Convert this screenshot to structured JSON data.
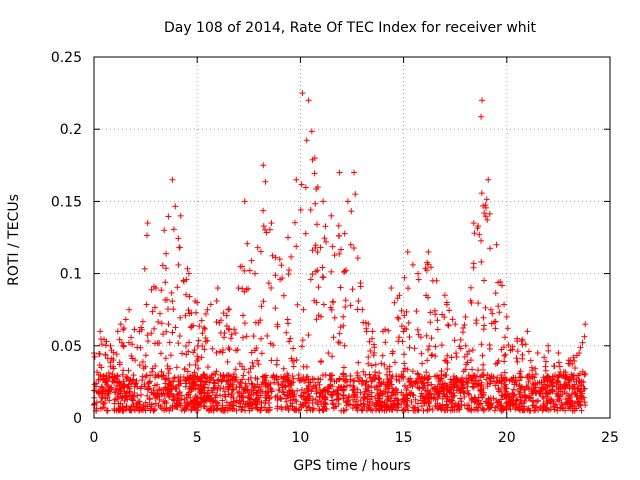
{
  "chart_data": {
    "type": "scatter",
    "title": "Day 108 of 2014, Rate Of TEC Index for receiver whit",
    "xlabel": "GPS time / hours",
    "ylabel": "ROTI / TECUs",
    "xlim": [
      0,
      25
    ],
    "ylim": [
      0,
      0.25
    ],
    "x_ticks": [
      0,
      5,
      10,
      15,
      20,
      25
    ],
    "x_tick_labels": [
      "0",
      "5",
      "10",
      "15",
      "20",
      "25"
    ],
    "y_ticks": [
      0,
      0.05,
      0.1,
      0.15,
      0.2,
      0.25
    ],
    "y_tick_labels": [
      "0",
      "0.05",
      "0.1",
      "0.15",
      "0.2",
      "0.25"
    ],
    "grid": true,
    "marker": "+",
    "color": "#ff0000",
    "series_note": "Dense cloud of ROTI samples; envelope below lists approximate local maxima (hours, TECU/min)",
    "envelope": [
      [
        0.0,
        0.045
      ],
      [
        0.3,
        0.06
      ],
      [
        0.8,
        0.05
      ],
      [
        1.3,
        0.065
      ],
      [
        1.7,
        0.075
      ],
      [
        2.2,
        0.06
      ],
      [
        2.6,
        0.135
      ],
      [
        3.0,
        0.09
      ],
      [
        3.4,
        0.13
      ],
      [
        3.8,
        0.165
      ],
      [
        4.2,
        0.14
      ],
      [
        4.6,
        0.1
      ],
      [
        5.0,
        0.08
      ],
      [
        5.5,
        0.075
      ],
      [
        6.0,
        0.09
      ],
      [
        6.5,
        0.075
      ],
      [
        7.0,
        0.09
      ],
      [
        7.3,
        0.15
      ],
      [
        7.8,
        0.1
      ],
      [
        8.2,
        0.175
      ],
      [
        8.6,
        0.135
      ],
      [
        9.0,
        0.11
      ],
      [
        9.4,
        0.125
      ],
      [
        9.8,
        0.165
      ],
      [
        10.1,
        0.225
      ],
      [
        10.4,
        0.22
      ],
      [
        10.7,
        0.18
      ],
      [
        11.1,
        0.15
      ],
      [
        11.5,
        0.14
      ],
      [
        11.9,
        0.17
      ],
      [
        12.3,
        0.15
      ],
      [
        12.6,
        0.17
      ],
      [
        13.0,
        0.075
      ],
      [
        13.5,
        0.06
      ],
      [
        14.0,
        0.06
      ],
      [
        14.4,
        0.09
      ],
      [
        14.8,
        0.085
      ],
      [
        15.2,
        0.115
      ],
      [
        15.7,
        0.1
      ],
      [
        16.2,
        0.115
      ],
      [
        16.6,
        0.095
      ],
      [
        17.0,
        0.085
      ],
      [
        17.5,
        0.065
      ],
      [
        18.0,
        0.07
      ],
      [
        18.4,
        0.135
      ],
      [
        18.8,
        0.22
      ],
      [
        19.1,
        0.165
      ],
      [
        19.5,
        0.12
      ],
      [
        20.0,
        0.07
      ],
      [
        20.5,
        0.055
      ],
      [
        21.0,
        0.06
      ],
      [
        21.5,
        0.045
      ],
      [
        22.0,
        0.05
      ],
      [
        22.5,
        0.045
      ],
      [
        23.0,
        0.04
      ],
      [
        23.5,
        0.045
      ],
      [
        23.8,
        0.065
      ]
    ],
    "baseline_min": 0.005,
    "baseline_typical": 0.03
  }
}
